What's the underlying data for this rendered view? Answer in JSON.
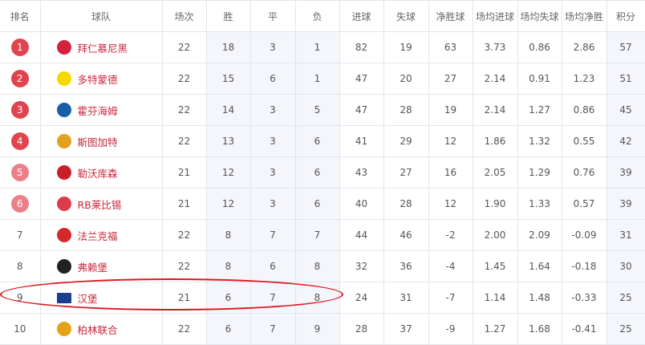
{
  "headers": [
    "排名",
    "球队",
    "场次",
    "胜",
    "平",
    "负",
    "进球",
    "失球",
    "净胜球",
    "场均进球",
    "场均失球",
    "场均净胜",
    "积分"
  ],
  "colors": {
    "badge_top": "#e0454f",
    "badge_euro": "#ec8088",
    "team_text": "#c8283c",
    "highlight_ellipse": "#e0141e"
  },
  "rows": [
    {
      "rank": "1",
      "badge": "top",
      "logo": "bayern-logo",
      "logo_color": "#d4213d",
      "team": "拜仁慕尼黑",
      "p": "22",
      "w": "18",
      "d": "3",
      "l": "1",
      "gf": "82",
      "ga": "19",
      "gd": "63",
      "agf": "3.73",
      "aga": "0.86",
      "agd": "2.86",
      "pts": "57"
    },
    {
      "rank": "2",
      "badge": "top",
      "logo": "dortmund-logo",
      "logo_color": "#f5d800",
      "team": "多特蒙德",
      "p": "22",
      "w": "15",
      "d": "6",
      "l": "1",
      "gf": "47",
      "ga": "20",
      "gd": "27",
      "agf": "2.14",
      "aga": "0.91",
      "agd": "1.23",
      "pts": "51"
    },
    {
      "rank": "3",
      "badge": "top",
      "logo": "hoffenheim-logo",
      "logo_color": "#1a5ea8",
      "team": "霍芬海姆",
      "p": "22",
      "w": "14",
      "d": "3",
      "l": "5",
      "gf": "47",
      "ga": "28",
      "gd": "19",
      "agf": "2.14",
      "aga": "1.27",
      "agd": "0.86",
      "pts": "45"
    },
    {
      "rank": "4",
      "badge": "top",
      "logo": "stuttgart-logo",
      "logo_color": "#e2a020",
      "team": "斯图加特",
      "p": "22",
      "w": "13",
      "d": "3",
      "l": "6",
      "gf": "41",
      "ga": "29",
      "gd": "12",
      "agf": "1.86",
      "aga": "1.32",
      "agd": "0.55",
      "pts": "42"
    },
    {
      "rank": "5",
      "badge": "euro",
      "logo": "leverkusen-logo",
      "logo_color": "#c8202a",
      "team": "勒沃库森",
      "p": "21",
      "w": "12",
      "d": "3",
      "l": "6",
      "gf": "43",
      "ga": "27",
      "gd": "16",
      "agf": "2.05",
      "aga": "1.29",
      "agd": "0.76",
      "pts": "39"
    },
    {
      "rank": "6",
      "badge": "euro",
      "logo": "leipzig-logo",
      "logo_color": "#dd3b4a",
      "team": "RB莱比锡",
      "p": "21",
      "w": "12",
      "d": "3",
      "l": "6",
      "gf": "40",
      "ga": "28",
      "gd": "12",
      "agf": "1.90",
      "aga": "1.33",
      "agd": "0.57",
      "pts": "39"
    },
    {
      "rank": "7",
      "badge": "none",
      "logo": "frankfurt-logo",
      "logo_color": "#d42a2a",
      "team": "法兰克福",
      "p": "22",
      "w": "8",
      "d": "7",
      "l": "7",
      "gf": "44",
      "ga": "46",
      "gd": "-2",
      "agf": "2.00",
      "aga": "2.09",
      "agd": "-0.09",
      "pts": "31"
    },
    {
      "rank": "8",
      "badge": "none",
      "logo": "freiburg-logo",
      "logo_color": "#222222",
      "team": "弗赖堡",
      "p": "22",
      "w": "8",
      "d": "6",
      "l": "8",
      "gf": "32",
      "ga": "36",
      "gd": "-4",
      "agf": "1.45",
      "aga": "1.64",
      "agd": "-0.18",
      "pts": "30"
    },
    {
      "rank": "9",
      "badge": "none",
      "logo": "hamburg-logo",
      "logo_color": "#1b3f8f",
      "team": "汉堡",
      "p": "21",
      "w": "6",
      "d": "7",
      "l": "8",
      "gf": "24",
      "ga": "31",
      "gd": "-7",
      "agf": "1.14",
      "aga": "1.48",
      "agd": "-0.33",
      "pts": "25",
      "highlighted": true
    },
    {
      "rank": "10",
      "badge": "none",
      "logo": "union-berlin-logo",
      "logo_color": "#e4a316",
      "team": "柏林联合",
      "p": "22",
      "w": "6",
      "d": "7",
      "l": "9",
      "gf": "28",
      "ga": "37",
      "gd": "-9",
      "agf": "1.27",
      "aga": "1.68",
      "agd": "-0.41",
      "pts": "25"
    }
  ]
}
